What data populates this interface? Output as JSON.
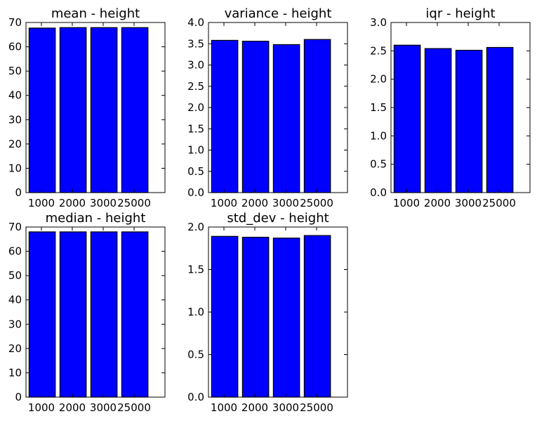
{
  "chart_data": [
    {
      "type": "bar",
      "title": "mean - height",
      "categories": [
        "1000",
        "2000",
        "3000",
        "25000"
      ],
      "values": [
        67.7,
        67.9,
        67.9,
        67.9
      ],
      "ylim": [
        0,
        70
      ],
      "yticks": [
        "0",
        "10",
        "20",
        "30",
        "40",
        "50",
        "60",
        "70"
      ],
      "bar_color": "#0000ff",
      "xlabel": "",
      "ylabel": ""
    },
    {
      "type": "bar",
      "title": "variance - height",
      "categories": [
        "1000",
        "2000",
        "3000",
        "25000"
      ],
      "values": [
        3.58,
        3.56,
        3.48,
        3.6
      ],
      "ylim": [
        0,
        4.0
      ],
      "yticks": [
        "0.0",
        "0.5",
        "1.0",
        "1.5",
        "2.0",
        "2.5",
        "3.0",
        "3.5",
        "4.0"
      ],
      "bar_color": "#0000ff",
      "xlabel": "",
      "ylabel": ""
    },
    {
      "type": "bar",
      "title": "iqr - height",
      "categories": [
        "1000",
        "2000",
        "3000",
        "25000"
      ],
      "values": [
        2.6,
        2.54,
        2.51,
        2.56
      ],
      "ylim": [
        0,
        3.0
      ],
      "yticks": [
        "0.0",
        "0.5",
        "1.0",
        "1.5",
        "2.0",
        "2.5",
        "3.0"
      ],
      "bar_color": "#0000ff",
      "xlabel": "",
      "ylabel": ""
    },
    {
      "type": "bar",
      "title": "median - height",
      "categories": [
        "1000",
        "2000",
        "3000",
        "25000"
      ],
      "values": [
        68.0,
        68.0,
        68.0,
        68.0
      ],
      "ylim": [
        0,
        70
      ],
      "yticks": [
        "0",
        "10",
        "20",
        "30",
        "40",
        "50",
        "60",
        "70"
      ],
      "bar_color": "#0000ff",
      "xlabel": "",
      "ylabel": ""
    },
    {
      "type": "bar",
      "title": "std_dev - height",
      "categories": [
        "1000",
        "2000",
        "3000",
        "25000"
      ],
      "values": [
        1.89,
        1.88,
        1.87,
        1.9
      ],
      "ylim": [
        0,
        2.0
      ],
      "yticks": [
        "0.0",
        "0.5",
        "1.0",
        "1.5",
        "2.0"
      ],
      "bar_color": "#0000ff",
      "xlabel": "",
      "ylabel": ""
    }
  ]
}
